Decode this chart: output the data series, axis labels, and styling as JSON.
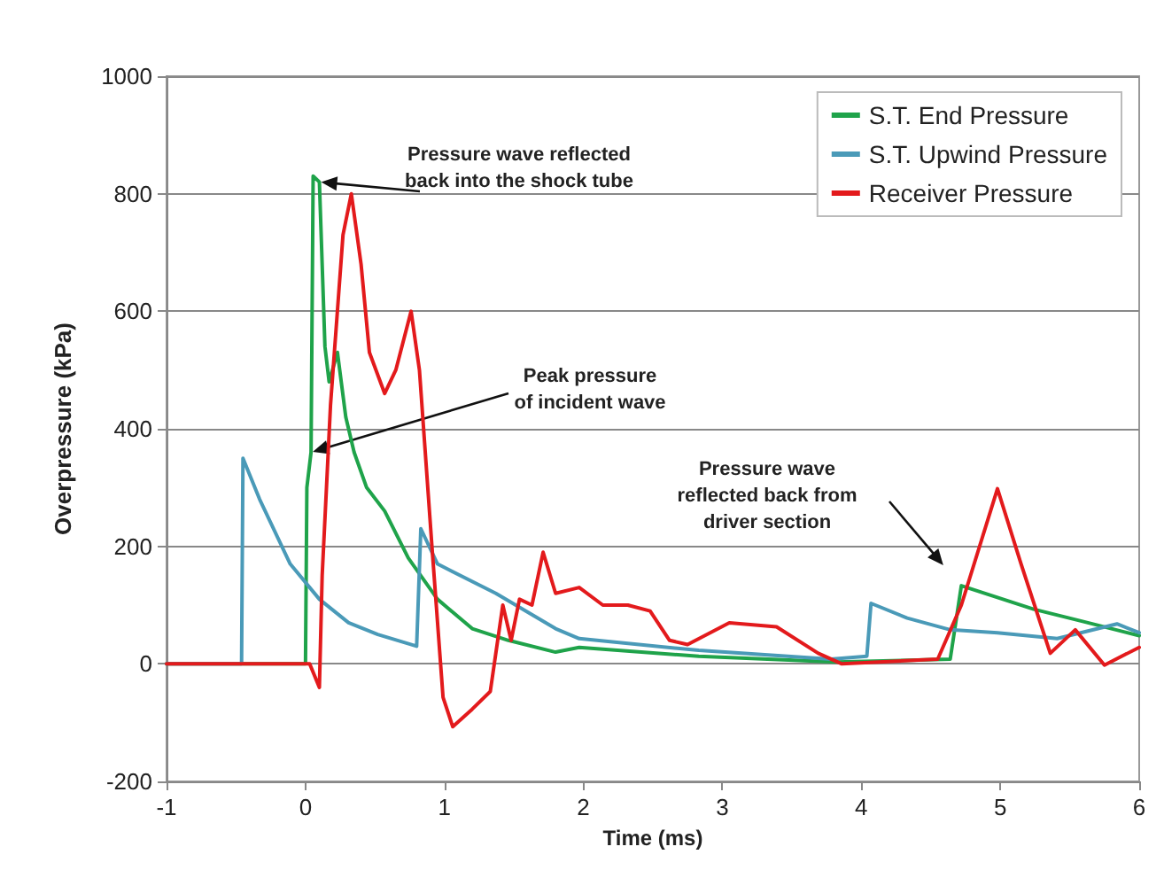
{
  "chart_data": {
    "type": "line",
    "xlabel": "Time (ms)",
    "ylabel": "Overpressure (kPa)",
    "xlim": [
      -1,
      6
    ],
    "xticks": [
      -1,
      0,
      1,
      2,
      3,
      4,
      5,
      6
    ],
    "ylim": [
      -200,
      1000
    ],
    "yticks": [
      -200,
      0,
      200,
      400,
      600,
      800,
      {
        "value": 1000,
        "label": "1000"
      }
    ],
    "grid": "y",
    "legend": "top right",
    "marker": "none",
    "line_style": "solid",
    "series": [
      {
        "name": "S.T. End Pressure",
        "color": "#1fa34a",
        "x": [
          -1,
          0,
          0.01,
          0.04,
          0.055,
          0.1,
          0.14,
          0.17,
          0.23,
          0.29,
          0.35,
          0.44,
          0.57,
          0.74,
          0.95,
          1.2,
          1.46,
          1.8,
          1.97,
          2.83,
          3.82,
          4.64,
          4.72,
          4.98,
          5.24,
          5.58,
          6
        ],
        "values": [
          0,
          0,
          300,
          360,
          830,
          820,
          540,
          480,
          530,
          420,
          360,
          300,
          260,
          180,
          110,
          60,
          40,
          20,
          28,
          13,
          3,
          8,
          133,
          113,
          93,
          73,
          48
        ]
      },
      {
        "name": "S.T. Upwind Pressure",
        "color": "#4a9ab8",
        "x": [
          -1,
          -0.46,
          -0.45,
          -0.33,
          -0.11,
          0.1,
          0.31,
          0.52,
          0.8,
          0.83,
          0.95,
          1.37,
          1.8,
          1.97,
          2.83,
          3.78,
          4.04,
          4.07,
          4.33,
          4.64,
          4.98,
          5.41,
          5.84,
          6
        ],
        "values": [
          0,
          0,
          350,
          280,
          170,
          110,
          70,
          50,
          30,
          230,
          170,
          120,
          60,
          43,
          23,
          8,
          13,
          103,
          78,
          58,
          53,
          43,
          68,
          53
        ]
      },
      {
        "name": "Receiver Pressure",
        "color": "#e31a1c",
        "x": [
          -1,
          0.03,
          0.1,
          0.12,
          0.18,
          0.27,
          0.33,
          0.4,
          0.46,
          0.57,
          0.65,
          0.76,
          0.82,
          0.91,
          0.99,
          1.06,
          1.2,
          1.33,
          1.42,
          1.48,
          1.54,
          1.63,
          1.71,
          1.8,
          1.97,
          2.14,
          2.32,
          2.48,
          2.62,
          2.75,
          3.05,
          3.39,
          3.69,
          3.86,
          4.55,
          4.72,
          4.98,
          5.15,
          5.36,
          5.54,
          5.75,
          6
        ],
        "values": [
          0,
          0,
          -40,
          150,
          440,
          730,
          800,
          680,
          530,
          460,
          500,
          600,
          500,
          200,
          -57,
          -107,
          -77,
          -47,
          100,
          40,
          110,
          100,
          190,
          120,
          130,
          100,
          100,
          90,
          40,
          33,
          70,
          63,
          18,
          0,
          8,
          100,
          298,
          170,
          18,
          58,
          -2,
          28
        ]
      }
    ],
    "annotations": [
      {
        "text": "Pressure wave reflected\nback into the shock tube",
        "x": 0.1,
        "y": 820
      },
      {
        "text": "Peak pressure\nof incident wave",
        "x": 0.04,
        "y": 360
      },
      "Pressure wave\nreflected back from\ndriver section"
    ]
  }
}
